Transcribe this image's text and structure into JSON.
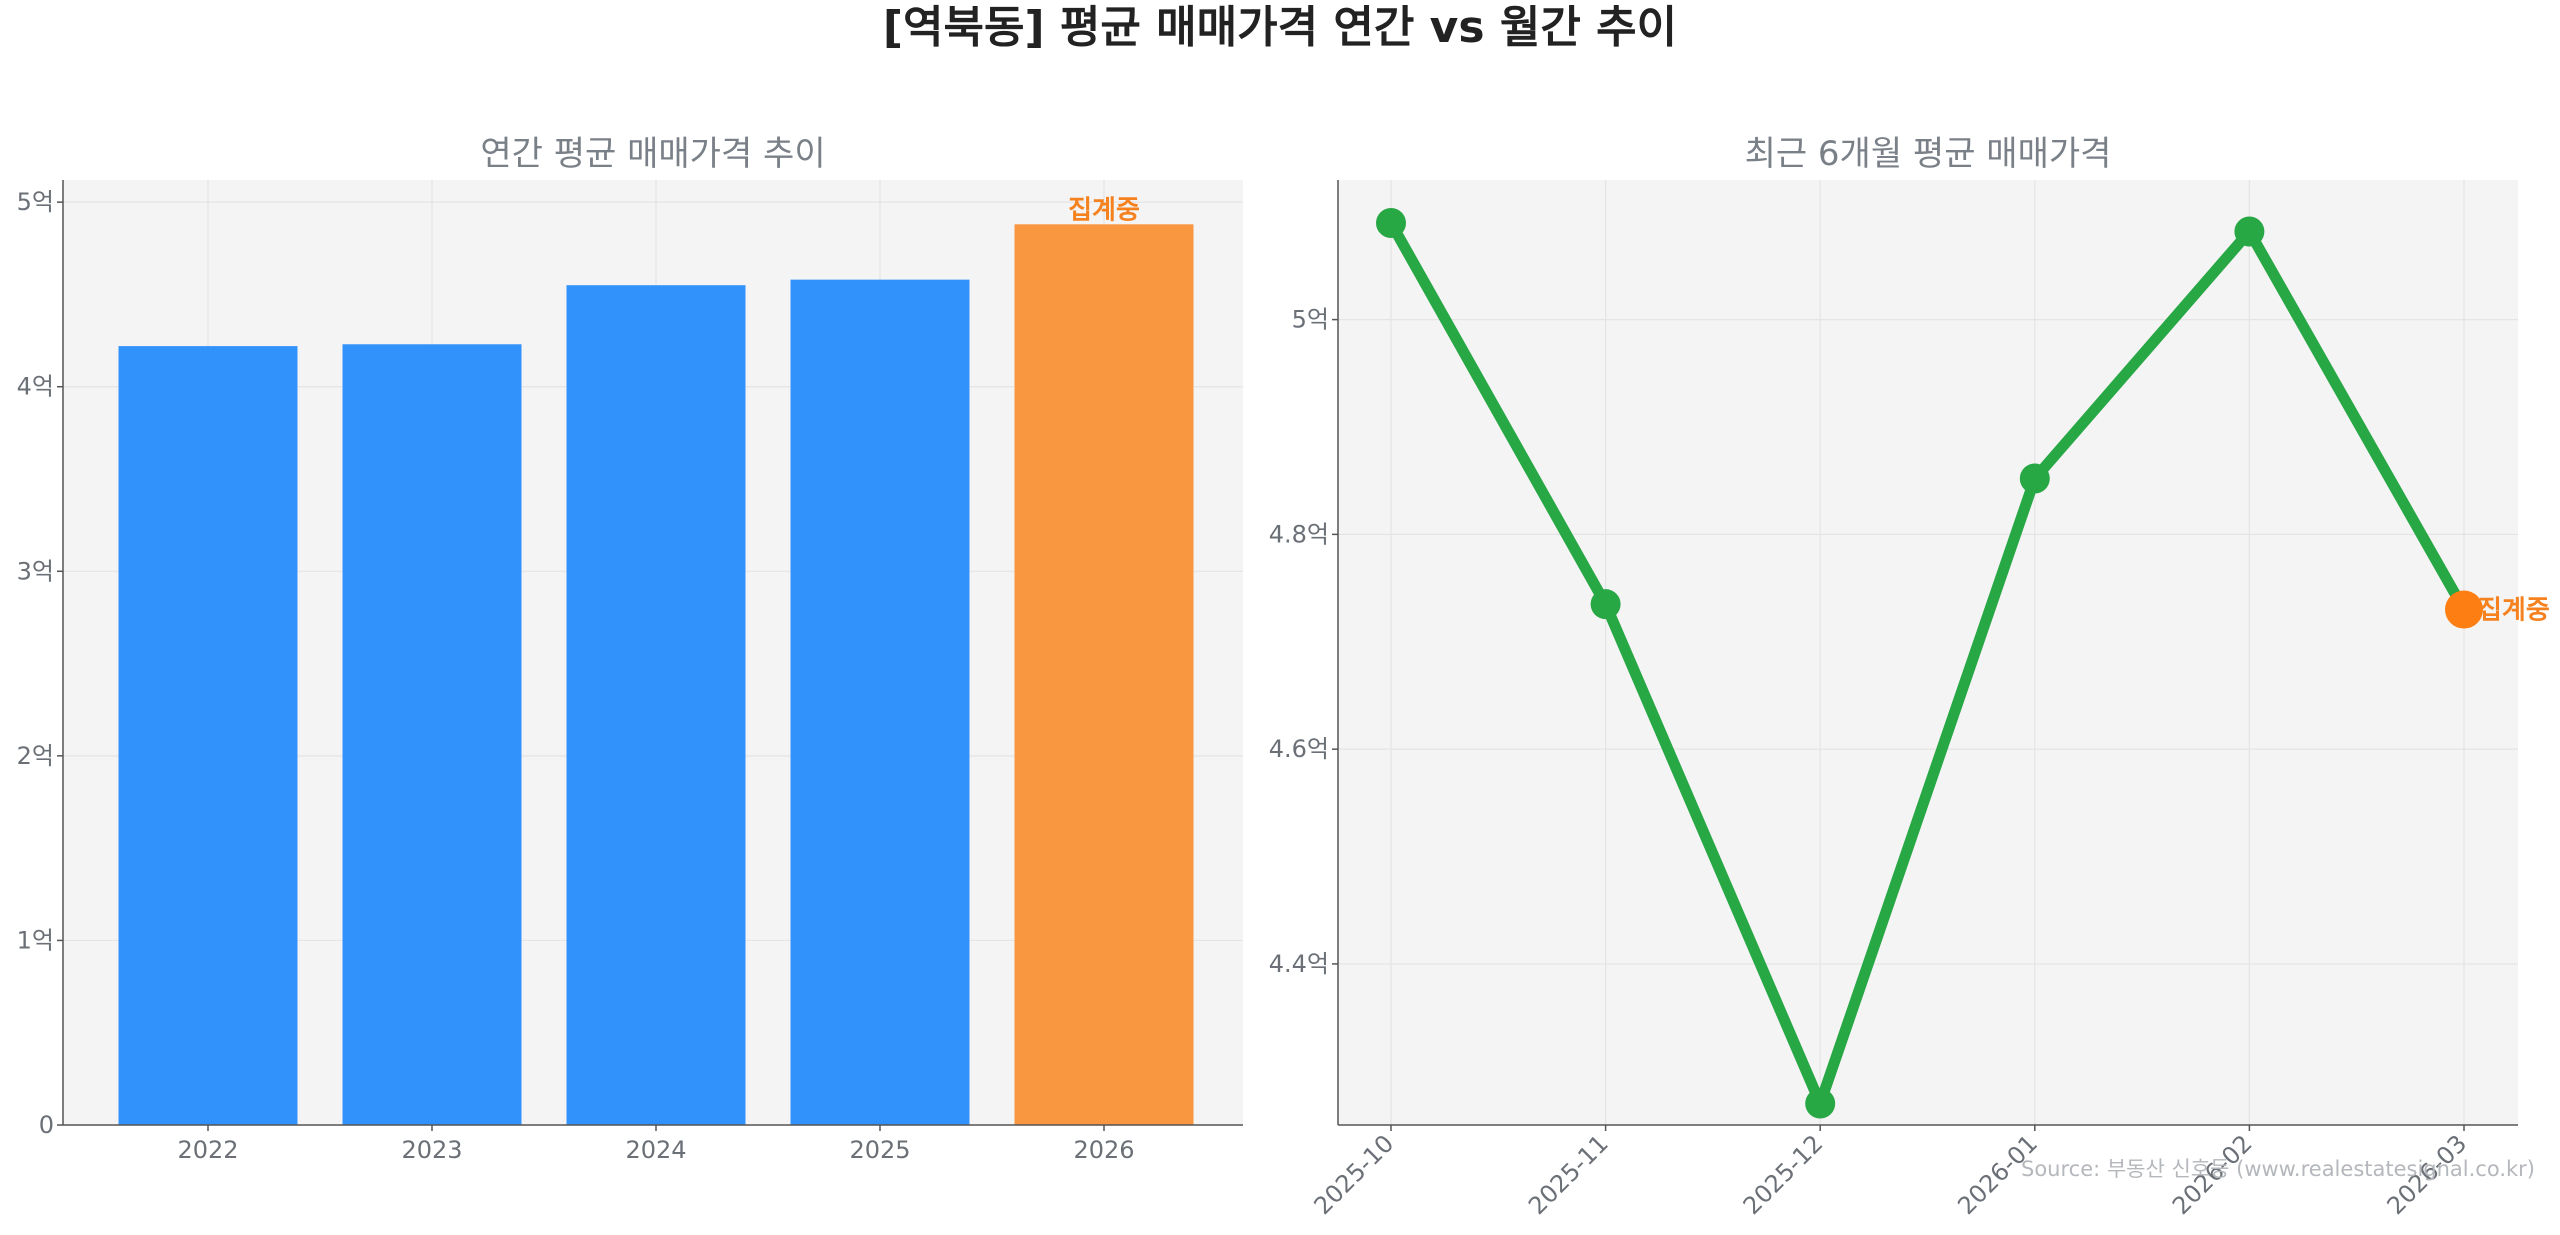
{
  "suptitle": "[역북동] 평균 매매가격 연간 vs 월간 추이",
  "source_note": "Source: 부동산 신호등 (www.realestatesignal.co.kr)",
  "colors": {
    "annual_bar": "#3292fb",
    "annual_bar_partial": "#f99640",
    "monthly_line": "#28a745",
    "monthly_point_partial": "#fd7f14",
    "annotation": "#f5821f",
    "axes_bg": "#f4f4f4"
  },
  "chart_data": [
    {
      "type": "bar",
      "title": "연간 평균 매매가격 추이",
      "categories": [
        "2022",
        "2023",
        "2024",
        "2025",
        "2026"
      ],
      "values": [
        4.22,
        4.23,
        4.55,
        4.58,
        4.88
      ],
      "unit": "억",
      "ylim": [
        0,
        5.12
      ],
      "yticks": [
        0,
        1,
        2,
        3,
        4,
        5
      ],
      "ytick_labels": [
        "0",
        "1억",
        "2억",
        "3억",
        "4억",
        "5억"
      ],
      "annotation": {
        "category": "2026",
        "text": "집계중"
      },
      "grid": true
    },
    {
      "type": "line",
      "title": "최근 6개월 평균 매매가격",
      "x": [
        "2025-10",
        "2025-11",
        "2025-12",
        "2026-01",
        "2026-02",
        "2026-03"
      ],
      "values": [
        5.09,
        4.735,
        4.27,
        4.852,
        5.082,
        4.73
      ],
      "unit": "억",
      "ylim": [
        4.25,
        5.13
      ],
      "yticks": [
        4.4,
        4.6,
        4.8,
        5.0
      ],
      "ytick_labels": [
        "4.4억",
        "4.6억",
        "4.8억",
        "5억"
      ],
      "annotation": {
        "x": "2026-03",
        "text": "집계중"
      },
      "grid": true
    }
  ]
}
